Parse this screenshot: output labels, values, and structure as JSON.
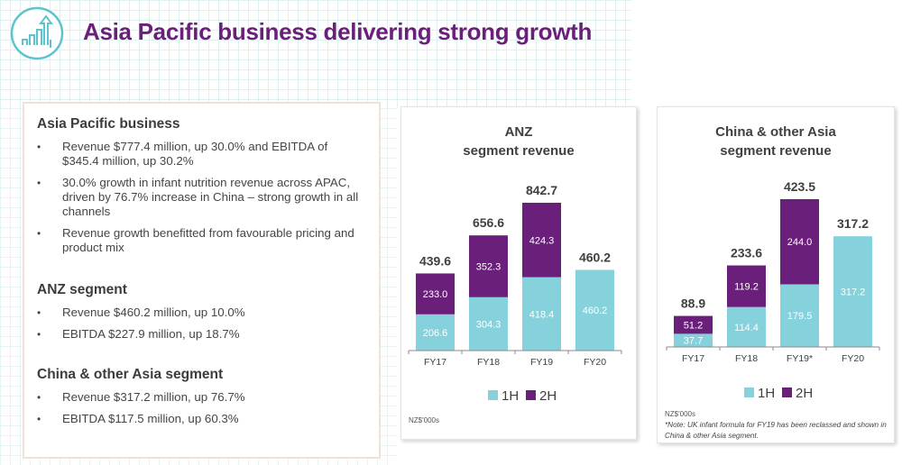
{
  "header": {
    "title": "Asia Pacific business delivering strong growth",
    "logo_icon": "growth-chart-arrow-icon"
  },
  "colors": {
    "brand_purple": "#6a1f7a",
    "bar_1h": "#86d2dc",
    "bar_2h": "#6a1f7a",
    "logo_teal": "#5cc3cf"
  },
  "summary": {
    "sections": [
      {
        "heading": "Asia Pacific business",
        "bullets": [
          "Revenue $777.4 million, up 30.0% and EBITDA of $345.4 million, up 30.2%",
          "30.0% growth in infant nutrition revenue across APAC, driven by 76.7% increase in China – strong growth in all channels",
          "Revenue growth benefitted from favourable pricing and product mix"
        ]
      },
      {
        "heading": "ANZ segment",
        "bullets": [
          "Revenue $460.2 million, up 10.0%",
          "EBITDA $227.9 million, up 18.7%"
        ]
      },
      {
        "heading": "China & other Asia segment",
        "bullets": [
          "Revenue $317.2 million, up 76.7%",
          "EBITDA $117.5 million, up 60.3%"
        ]
      }
    ],
    "bullet_glyph": "•"
  },
  "chart_data": [
    {
      "type": "bar",
      "stacked": true,
      "title_line1": "ANZ",
      "title_line2": "segment revenue",
      "categories": [
        "FY17",
        "FY18",
        "FY19",
        "FY20"
      ],
      "series": [
        {
          "name": "1H",
          "values": [
            206.6,
            304.3,
            418.4,
            460.2
          ]
        },
        {
          "name": "2H",
          "values": [
            233.0,
            352.3,
            424.3,
            null
          ]
        }
      ],
      "totals": [
        "439.6",
        "656.6",
        "842.7",
        "460.2"
      ],
      "segment_labels_1h": [
        "206.6",
        "304.3",
        "418.4",
        "460.2"
      ],
      "segment_labels_2h": [
        "233.0",
        "352.3",
        "424.3",
        ""
      ],
      "legend": [
        "1H",
        "2H"
      ],
      "legend_position": "bottom",
      "ylim": [
        0,
        842.7
      ],
      "grid": false,
      "footnote": "NZ$'000s",
      "note": ""
    },
    {
      "type": "bar",
      "stacked": true,
      "title_line1": "China & other Asia",
      "title_line2": "segment revenue",
      "categories": [
        "FY17",
        "FY18",
        "FY19*",
        "FY20"
      ],
      "series": [
        {
          "name": "1H",
          "values": [
            37.7,
            114.4,
            179.5,
            317.2
          ]
        },
        {
          "name": "2H",
          "values": [
            51.2,
            119.2,
            244.0,
            null
          ]
        }
      ],
      "totals": [
        "88.9",
        "233.6",
        "423.5",
        "317.2"
      ],
      "segment_labels_1h": [
        "37.7",
        "114.4",
        "179.5",
        "317.2"
      ],
      "segment_labels_2h": [
        "51.2",
        "119.2",
        "244.0",
        ""
      ],
      "legend": [
        "1H",
        "2H"
      ],
      "legend_position": "bottom",
      "ylim": [
        0,
        423.5
      ],
      "grid": false,
      "footnote": "NZ$'000s",
      "note": "*Note: UK infant formula for FY19 has been reclassed and shown in China & other Asia segment."
    }
  ]
}
